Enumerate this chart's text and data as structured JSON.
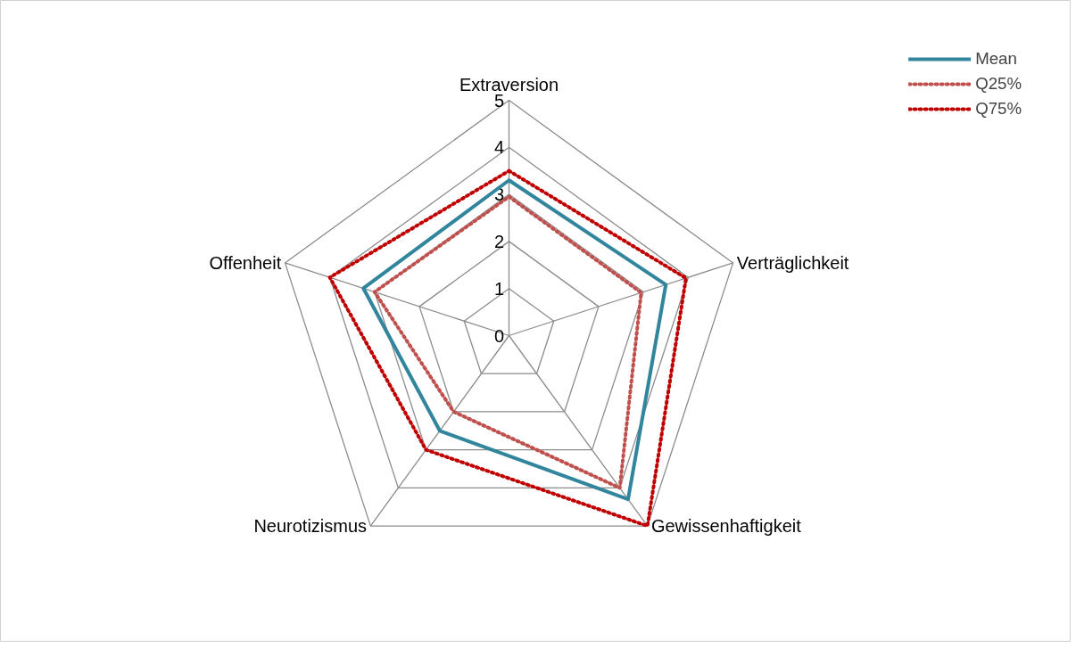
{
  "chart_data": {
    "type": "radar",
    "categories": [
      "Extraversion",
      "Verträglichkeit",
      "Gewissenhaftigkeit",
      "Neurotizismus",
      "Offenheit"
    ],
    "series": [
      {
        "name": "Mean",
        "color": "#31859c",
        "line_style": "solid",
        "values": [
          3.3,
          3.5,
          4.3,
          2.5,
          3.25
        ]
      },
      {
        "name": "Q25%",
        "color": "#c0504d",
        "line_style": "dotted",
        "values": [
          2.95,
          2.95,
          4.0,
          2.0,
          3.0
        ]
      },
      {
        "name": "Q75%",
        "color": "#c00000",
        "line_style": "dotted",
        "values": [
          3.5,
          3.95,
          5.0,
          3.0,
          4.0
        ]
      }
    ],
    "ylim": [
      0,
      5
    ],
    "yticks": [
      0,
      1,
      2,
      3,
      4,
      5
    ],
    "grid": true,
    "legend": "top right"
  }
}
